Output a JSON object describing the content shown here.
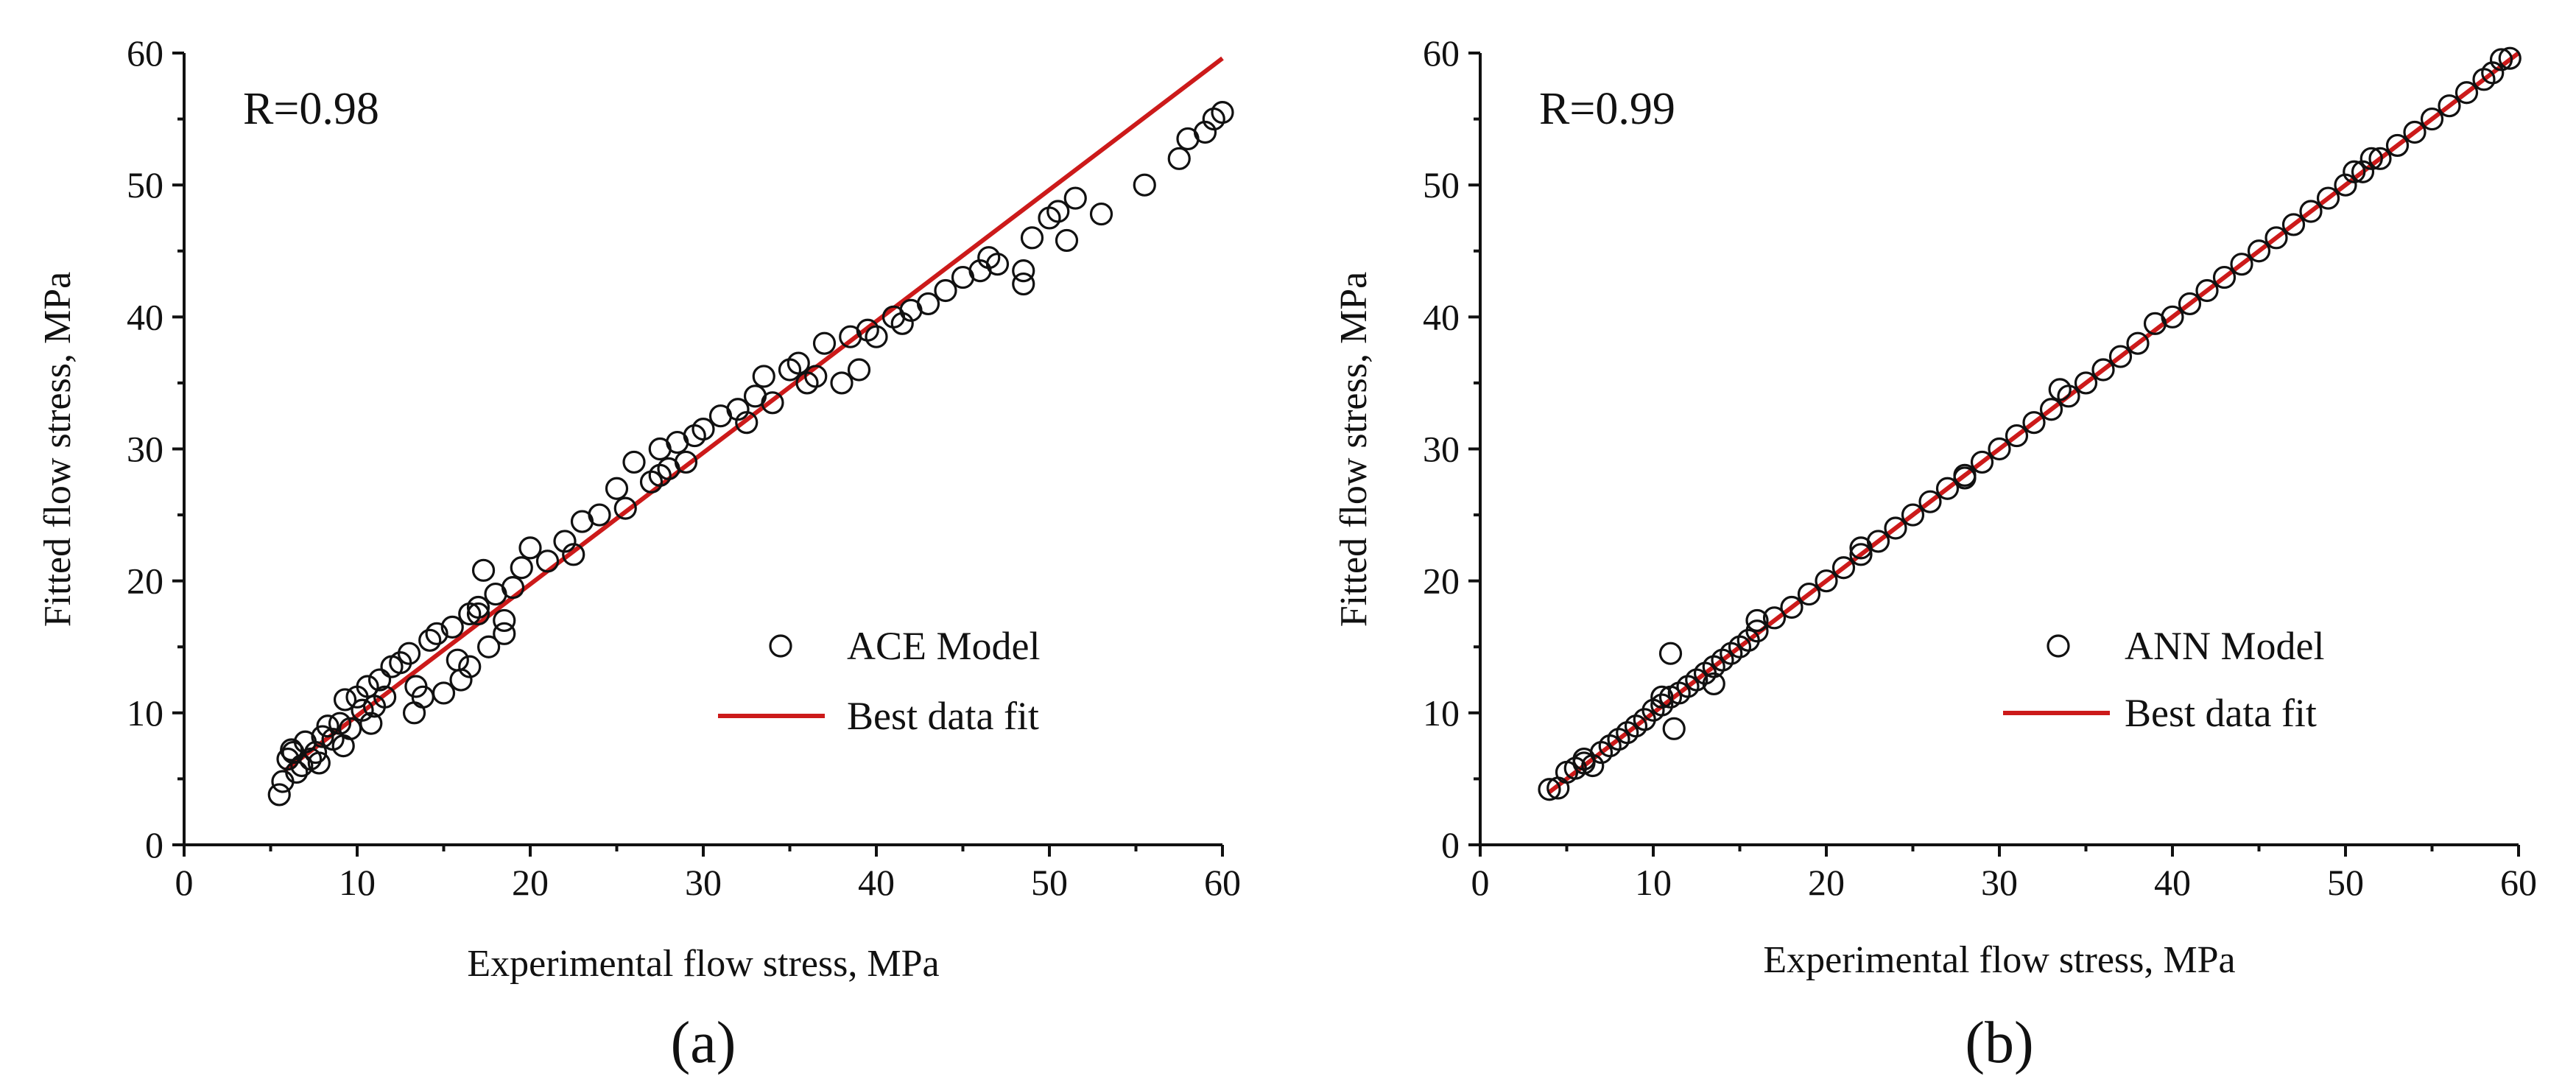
{
  "chart_data": [
    {
      "type": "scatter",
      "panel_label": "(a)",
      "annotation": "R=0.98",
      "xlabel": "Experimental flow stress, MPa",
      "ylabel": "Fitted flow stress, MPa",
      "xlim": [
        0,
        60
      ],
      "ylim": [
        0,
        60
      ],
      "xticks": [
        "0",
        "10",
        "20",
        "30",
        "40",
        "50",
        "60"
      ],
      "yticks": [
        "0",
        "10",
        "20",
        "30",
        "40",
        "50",
        "60"
      ],
      "colors": {
        "fit": "#cc1a1a",
        "marker": "#111111"
      },
      "legend": {
        "position": "lower-right",
        "entries": [
          "ACE Model",
          "Best data fit"
        ]
      },
      "series": [
        {
          "name": "ACE Model",
          "marker": "open-circle",
          "x": [
            5.5,
            5.7,
            6.0,
            6.2,
            6.5,
            6.8,
            7.0,
            7.3,
            7.6,
            8.0,
            8.3,
            8.6,
            9.0,
            9.3,
            9.6,
            10.0,
            10.3,
            10.6,
            11.0,
            11.3,
            11.6,
            12.0,
            12.5,
            13.0,
            13.4,
            13.8,
            14.2,
            14.6,
            15.0,
            15.5,
            16.0,
            16.5,
            17.0,
            17.3,
            17.6,
            18.0,
            18.5,
            19.0,
            19.5,
            20.0,
            21.0,
            22.0,
            23.0,
            24.0,
            25.0,
            26.0,
            27.0,
            27.5,
            28.0,
            28.5,
            29.0,
            29.5,
            30.0,
            31.0,
            32.0,
            33.0,
            33.5,
            34.0,
            35.0,
            35.5,
            36.0,
            37.0,
            38.0,
            38.5,
            39.0,
            39.5,
            40.0,
            41.0,
            42.0,
            43.0,
            44.0,
            45.0,
            46.0,
            46.5,
            47.0,
            48.5,
            49.0,
            50.0,
            50.5,
            51.0,
            51.5,
            53.0,
            55.5,
            57.5,
            58.0,
            59.0,
            59.5,
            60.0,
            6.3,
            7.8,
            9.2,
            10.8,
            13.3,
            15.8,
            16.5,
            17.0,
            18.5,
            22.5,
            25.5,
            27.5,
            32.5,
            36.5,
            41.5,
            48.5
          ],
          "y": [
            3.8,
            4.8,
            6.5,
            7.2,
            5.5,
            6.0,
            7.8,
            6.5,
            7.0,
            8.2,
            9.0,
            8.0,
            9.2,
            11.0,
            8.8,
            11.2,
            10.2,
            12.0,
            10.5,
            12.5,
            11.2,
            13.5,
            13.8,
            14.5,
            12.0,
            11.2,
            15.5,
            16.0,
            11.5,
            16.5,
            12.5,
            17.5,
            18.0,
            20.8,
            15.0,
            19.0,
            16.0,
            19.5,
            21.0,
            22.5,
            21.5,
            23.0,
            24.5,
            25.0,
            27.0,
            29.0,
            27.5,
            30.0,
            28.5,
            30.5,
            29.0,
            31.0,
            31.5,
            32.5,
            33.0,
            34.0,
            35.5,
            33.5,
            36.0,
            36.5,
            35.0,
            38.0,
            35.0,
            38.5,
            36.0,
            39.0,
            38.5,
            40.0,
            40.5,
            41.0,
            42.0,
            43.0,
            43.5,
            44.5,
            44.0,
            42.5,
            46.0,
            47.5,
            48.0,
            45.8,
            49.0,
            47.8,
            50.0,
            52.0,
            53.5,
            54.0,
            55.0,
            55.5,
            7.0,
            6.2,
            7.5,
            9.2,
            10.0,
            14.0,
            13.5,
            17.5,
            17.0,
            22.0,
            25.5,
            28.0,
            32.0,
            35.5,
            39.5,
            43.5
          ]
        },
        {
          "name": "Best data fit",
          "type": "line",
          "x": [
            5.8,
            60.0
          ],
          "y": [
            5.6,
            59.6
          ]
        }
      ]
    },
    {
      "type": "scatter",
      "panel_label": "(b)",
      "annotation": "R=0.99",
      "xlabel": "Experimental flow stress, MPa",
      "ylabel": "Fitted flow stress, MPa",
      "xlim": [
        0,
        60
      ],
      "ylim": [
        0,
        60
      ],
      "xticks": [
        "0",
        "10",
        "20",
        "30",
        "40",
        "50",
        "60"
      ],
      "yticks": [
        "0",
        "10",
        "20",
        "30",
        "40",
        "50",
        "60"
      ],
      "colors": {
        "fit": "#cc1a1a",
        "marker": "#111111"
      },
      "legend": {
        "position": "lower-right",
        "entries": [
          "ANN Model",
          "Best data fit"
        ]
      },
      "series": [
        {
          "name": "ANN Model",
          "marker": "open-circle",
          "x": [
            4.0,
            4.5,
            5.0,
            5.5,
            6.0,
            6.5,
            7.0,
            7.5,
            8.0,
            8.5,
            9.0,
            9.5,
            10.0,
            10.5,
            11.0,
            11.2,
            11.0,
            11.5,
            12.0,
            12.5,
            13.0,
            13.5,
            14.0,
            14.5,
            15.0,
            15.5,
            16.0,
            17.0,
            18.0,
            19.0,
            20.0,
            21.0,
            22.0,
            23.0,
            24.0,
            25.0,
            26.0,
            27.0,
            28.0,
            29.0,
            30.0,
            31.0,
            32.0,
            33.0,
            33.5,
            34.0,
            35.0,
            36.0,
            37.0,
            38.0,
            39.0,
            40.0,
            41.0,
            42.0,
            43.0,
            44.0,
            45.0,
            46.0,
            47.0,
            48.0,
            49.0,
            50.0,
            50.5,
            51.0,
            51.5,
            52.0,
            53.0,
            54.0,
            55.0,
            56.0,
            57.0,
            58.0,
            58.5,
            59.0,
            59.5,
            16.0,
            13.5,
            10.5,
            6.0,
            22.0,
            28.0
          ],
          "y": [
            4.2,
            4.3,
            5.5,
            5.8,
            6.2,
            6.0,
            7.0,
            7.5,
            8.0,
            8.5,
            9.0,
            9.5,
            10.2,
            10.6,
            14.5,
            8.8,
            11.2,
            11.5,
            12.0,
            12.5,
            13.0,
            13.5,
            14.0,
            14.5,
            15.0,
            15.5,
            16.2,
            17.2,
            18.0,
            19.0,
            20.0,
            21.0,
            22.0,
            23.0,
            24.0,
            25.0,
            26.0,
            27.0,
            28.0,
            29.0,
            30.0,
            31.0,
            32.0,
            33.0,
            34.5,
            34.0,
            35.0,
            36.0,
            37.0,
            38.0,
            39.5,
            40.0,
            41.0,
            42.0,
            43.0,
            44.0,
            45.0,
            46.0,
            47.0,
            48.0,
            49.0,
            50.0,
            51.0,
            51.0,
            52.0,
            52.0,
            53.0,
            54.0,
            55.0,
            56.0,
            57.0,
            58.0,
            58.5,
            59.5,
            59.6,
            17.0,
            12.2,
            11.2,
            6.5,
            22.5,
            27.8
          ]
        },
        {
          "name": "Best data fit",
          "type": "line",
          "x": [
            4.0,
            60.0
          ],
          "y": [
            4.0,
            60.0
          ]
        }
      ]
    }
  ]
}
